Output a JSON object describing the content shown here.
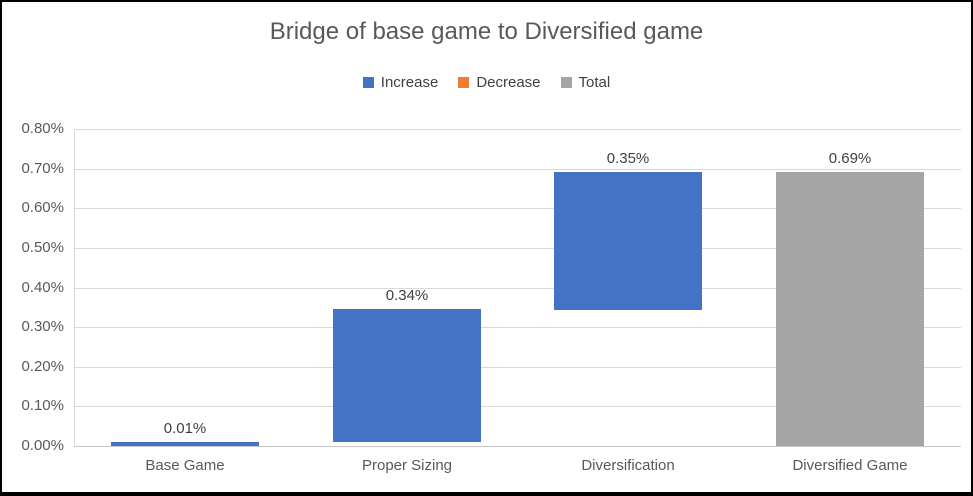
{
  "chart_data": {
    "type": "bar",
    "subtype": "waterfall-bridge",
    "title": "Bridge of base game to Diversified game",
    "categories": [
      "Base Game",
      "Proper Sizing",
      "Diversification",
      "Diversified Game"
    ],
    "legend_entries": [
      {
        "label": "Increase",
        "color": "#4472C4"
      },
      {
        "label": "Decrease",
        "color": "#ED7D31"
      },
      {
        "label": "Total",
        "color": "#A5A5A5"
      }
    ],
    "bars": [
      {
        "category": "Base Game",
        "series": "Increase",
        "start": 0.0,
        "end": 0.01,
        "label": "0.01%"
      },
      {
        "category": "Proper Sizing",
        "series": "Increase",
        "start": 0.01,
        "end": 0.345,
        "label": "0.34%"
      },
      {
        "category": "Diversification",
        "series": "Increase",
        "start": 0.345,
        "end": 0.6925,
        "label": "0.35%"
      },
      {
        "category": "Diversified Game",
        "series": "Total",
        "start": 0.0,
        "end": 0.6925,
        "label": "0.69%"
      }
    ],
    "y_axis": {
      "min": 0.0,
      "max": 0.8,
      "step": 0.1,
      "tick_labels": [
        "0.00%",
        "0.10%",
        "0.20%",
        "0.30%",
        "0.40%",
        "0.50%",
        "0.60%",
        "0.70%",
        "0.80%"
      ]
    },
    "grid": true,
    "legend_position": "top",
    "ylabel": "",
    "xlabel": ""
  },
  "colors": {
    "increase": "#4472C4",
    "decrease": "#ED7D31",
    "total": "#A5A5A5",
    "gridline": "#D9D9D9",
    "axis_line": "#C8C8C8",
    "axis_text": "#595959",
    "title_text": "#595959",
    "data_label_text": "#404040"
  }
}
